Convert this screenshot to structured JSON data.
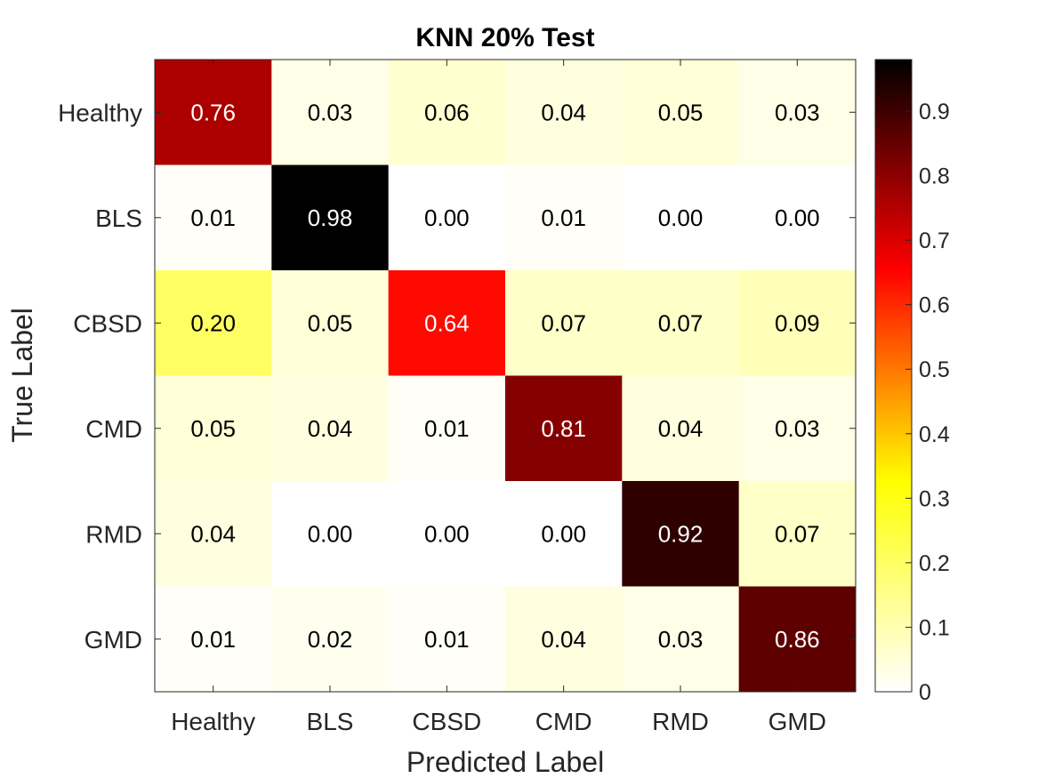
{
  "chart_data": {
    "type": "heatmap",
    "title": "KNN 20% Test",
    "xlabel": "Predicted Label",
    "ylabel": "True Label",
    "x_categories": [
      "Healthy",
      "BLS",
      "CBSD",
      "CMD",
      "RMD",
      "GMD"
    ],
    "y_categories": [
      "Healthy",
      "BLS",
      "CBSD",
      "CMD",
      "RMD",
      "GMD"
    ],
    "values": [
      [
        0.76,
        0.03,
        0.06,
        0.04,
        0.05,
        0.03
      ],
      [
        0.01,
        0.98,
        0.0,
        0.01,
        0.0,
        0.0
      ],
      [
        0.2,
        0.05,
        0.64,
        0.07,
        0.07,
        0.09
      ],
      [
        0.05,
        0.04,
        0.01,
        0.81,
        0.04,
        0.03
      ],
      [
        0.04,
        0.0,
        0.0,
        0.0,
        0.92,
        0.07
      ],
      [
        0.01,
        0.02,
        0.01,
        0.04,
        0.03,
        0.86
      ]
    ],
    "colormap": "hot (reversed)",
    "colorbar": {
      "range": [
        0,
        0.98
      ],
      "ticks": [
        "0",
        "0.1",
        "0.2",
        "0.3",
        "0.4",
        "0.5",
        "0.6",
        "0.7",
        "0.8",
        "0.9"
      ],
      "placement": "right"
    },
    "grid": false
  }
}
